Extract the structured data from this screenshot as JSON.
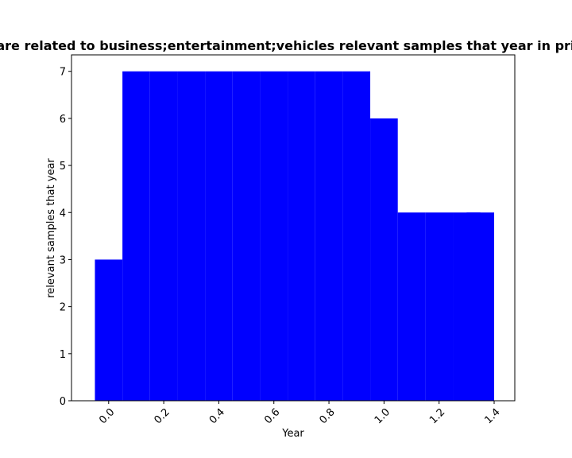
{
  "chart_data": {
    "type": "bar",
    "title": "are related to business;entertainment;vehicles relevant samples that year in priva",
    "xlabel": "Year",
    "ylabel": "relevant samples that year",
    "x_ticks": [
      "0.0",
      "0.2",
      "0.4",
      "0.6",
      "0.8",
      "1.0",
      "1.2",
      "1.4"
    ],
    "y_ticks": [
      "0",
      "1",
      "2",
      "3",
      "4",
      "5",
      "6",
      "7"
    ],
    "xlim": [
      -0.135,
      1.475
    ],
    "ylim": [
      0,
      7.35
    ],
    "bar_width": 0.1,
    "bar_color": "#0000ff",
    "bars": [
      {
        "x": 0.0,
        "y": 3
      },
      {
        "x": 0.1,
        "y": 7
      },
      {
        "x": 0.2,
        "y": 7
      },
      {
        "x": 0.3,
        "y": 7
      },
      {
        "x": 0.4,
        "y": 7
      },
      {
        "x": 0.5,
        "y": 7
      },
      {
        "x": 0.6,
        "y": 7
      },
      {
        "x": 0.7,
        "y": 7
      },
      {
        "x": 0.8,
        "y": 7
      },
      {
        "x": 0.9,
        "y": 7
      },
      {
        "x": 1.0,
        "y": 6
      },
      {
        "x": 1.1,
        "y": 4
      },
      {
        "x": 1.2,
        "y": 4
      },
      {
        "x": 1.3,
        "y": 4
      },
      {
        "x": 1.35,
        "y": 4
      }
    ],
    "grid": false,
    "legend": "none"
  }
}
